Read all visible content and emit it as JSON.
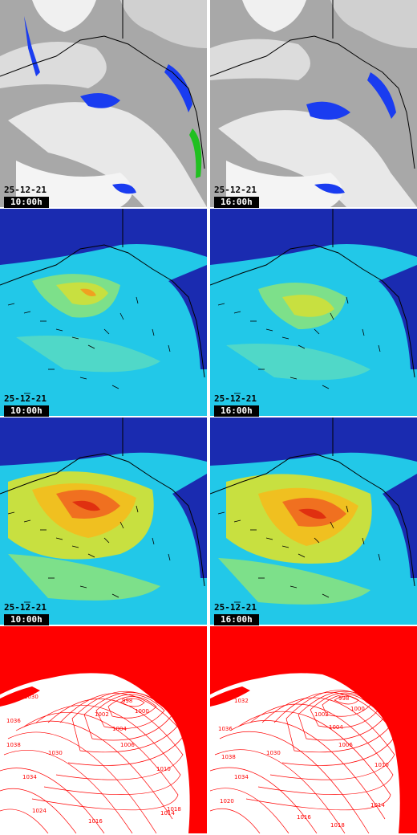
{
  "layout_rows": [
    "cloud",
    "wind",
    "gust",
    "pressure"
  ],
  "timestamps": {
    "left": {
      "date": "25-12-21",
      "time": "10:00h"
    },
    "right": {
      "date": "25-12-21",
      "time": "16:00h"
    }
  },
  "pressure_labels": {
    "left": [
      "1022",
      "1030",
      "1036",
      "1038",
      "1030",
      "1034",
      "1024",
      "1016",
      "1014",
      "1010",
      "1006",
      "1004",
      "1002",
      "1000",
      "998",
      "1018"
    ],
    "right": [
      "1032",
      "1036",
      "1038",
      "1030",
      "1034",
      "1020",
      "1016",
      "1014",
      "1010",
      "1006",
      "1004",
      "1002",
      "1000",
      "998",
      "1018"
    ]
  },
  "colors": {
    "cloud_bg": "#a8a8a8",
    "precip": "#1a3cf0",
    "wind_low": "#1a2bb0",
    "wind_mid": "#22c8e8",
    "wind_high": "#f0e020",
    "wind_max": "#e03010",
    "isobar": "#ff0000",
    "coast": "#000000"
  }
}
